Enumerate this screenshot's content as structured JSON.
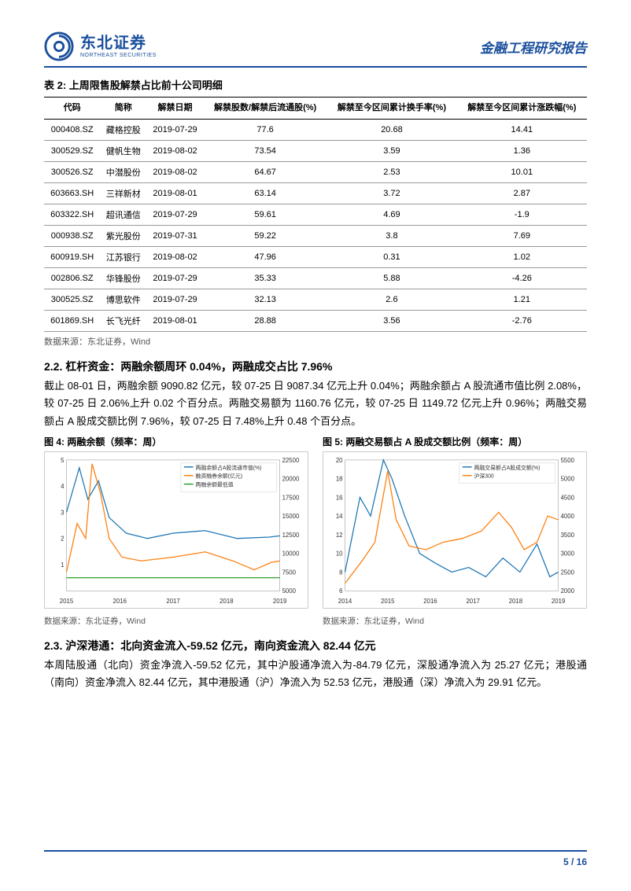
{
  "header": {
    "company_cn": "东北证券",
    "company_en": "NORTHEAST SECURITIES",
    "report_title": "金融工程研究报告",
    "logo_color": "#1a4f9c"
  },
  "table2": {
    "title": "表 2: 上周限售股解禁占比前十公司明细",
    "columns": [
      "代码",
      "简称",
      "解禁日期",
      "解禁股数/解禁后流通股(%)",
      "解禁至今区间累计换手率(%)",
      "解禁至今区间累计涨跌幅(%)"
    ],
    "rows": [
      [
        "000408.SZ",
        "藏格控股",
        "2019-07-29",
        "77.6",
        "20.68",
        "14.41"
      ],
      [
        "300529.SZ",
        "健帆生物",
        "2019-08-02",
        "73.54",
        "3.59",
        "1.36"
      ],
      [
        "300526.SZ",
        "中潜股份",
        "2019-08-02",
        "64.67",
        "2.53",
        "10.01"
      ],
      [
        "603663.SH",
        "三祥新材",
        "2019-08-01",
        "63.14",
        "3.72",
        "2.87"
      ],
      [
        "603322.SH",
        "超讯通信",
        "2019-07-29",
        "59.61",
        "4.69",
        "-1.9"
      ],
      [
        "000938.SZ",
        "紫光股份",
        "2019-07-31",
        "59.22",
        "3.8",
        "7.69"
      ],
      [
        "600919.SH",
        "江苏银行",
        "2019-08-02",
        "47.96",
        "0.31",
        "1.02"
      ],
      [
        "002806.SZ",
        "华锋股份",
        "2019-07-29",
        "35.33",
        "5.88",
        "-4.26"
      ],
      [
        "300525.SZ",
        "博思软件",
        "2019-07-29",
        "32.13",
        "2.6",
        "1.21"
      ],
      [
        "601869.SH",
        "长飞光纤",
        "2019-08-01",
        "28.88",
        "3.56",
        "-2.76"
      ]
    ],
    "source": "数据来源：东北证券，Wind"
  },
  "section22": {
    "heading": "2.2. 杠杆资金：两融余额周环 0.04%，两融成交占比 7.96%",
    "para": "截止 08-01 日，两融余额 9090.82 亿元，较 07-25 日 9087.34 亿元上升 0.04%；两融余额占 A 股流通市值比例 2.08%，较 07-25 日 2.06%上升 0.02 个百分点。两融交易额为 1160.76 亿元，较 07-25 日 1149.72 亿元上升 0.96%；两融交易额占 A 股成交额比例 7.96%，较 07-25 日 7.48%上升 0.48 个百分点。"
  },
  "chart4": {
    "title": "图 4: 两融余额（频率：周）",
    "type": "line",
    "background_color": "#ffffff",
    "legend": [
      "两融余额占A股流通市值(%)",
      "融资融券余额(亿元)",
      "两融余额最低值"
    ],
    "legend_colors": [
      "#1f77b4",
      "#ff7f0e",
      "#2ca02c"
    ],
    "x_ticks": [
      "2015",
      "2016",
      "2017",
      "2018",
      "2019"
    ],
    "y_left": {
      "min": 0,
      "max": 5,
      "ticks": [
        1,
        2,
        3,
        4,
        5
      ]
    },
    "y_right": {
      "min": 5000,
      "max": 22500,
      "ticks": [
        5000,
        7500,
        10000,
        12500,
        15000,
        17500,
        20000,
        22500
      ]
    },
    "series": {
      "pct": {
        "color": "#1f77b4",
        "x": [
          0,
          0.06,
          0.1,
          0.15,
          0.2,
          0.28,
          0.38,
          0.5,
          0.65,
          0.8,
          0.95,
          1.0
        ],
        "y": [
          3.0,
          4.7,
          3.5,
          4.2,
          2.8,
          2.2,
          2.0,
          2.2,
          2.3,
          2.0,
          2.05,
          2.1
        ]
      },
      "bal": {
        "color": "#ff7f0e",
        "x": [
          0,
          0.05,
          0.09,
          0.12,
          0.16,
          0.2,
          0.26,
          0.35,
          0.5,
          0.65,
          0.78,
          0.88,
          0.96,
          1.0
        ],
        "y": [
          7500,
          14000,
          12000,
          22000,
          18000,
          12000,
          9500,
          9000,
          9500,
          10200,
          9000,
          7800,
          8800,
          9000
        ]
      },
      "min": {
        "color": "#2ca02c",
        "x": [
          0,
          1.0
        ],
        "y": [
          0.5,
          0.5
        ]
      }
    },
    "source": "数据来源：东北证券，Wind"
  },
  "chart5": {
    "title": "图 5: 两融交易额占 A 股成交额比例（频率：周）",
    "type": "line",
    "background_color": "#ffffff",
    "legend": [
      "两融交易额占A股成交额(%)",
      "沪深300"
    ],
    "legend_colors": [
      "#1f77b4",
      "#ff7f0e"
    ],
    "x_ticks": [
      "2014",
      "2015",
      "2016",
      "2017",
      "2018",
      "2019"
    ],
    "y_left": {
      "min": 6,
      "max": 20,
      "ticks": [
        6,
        8,
        10,
        12,
        14,
        16,
        18,
        20
      ]
    },
    "y_right": {
      "min": 2000,
      "max": 5500,
      "ticks": [
        2000,
        2500,
        3000,
        3500,
        4000,
        4500,
        5000,
        5500
      ]
    },
    "series": {
      "pct": {
        "color": "#1f77b4",
        "x": [
          0,
          0.07,
          0.12,
          0.18,
          0.22,
          0.28,
          0.35,
          0.42,
          0.5,
          0.58,
          0.66,
          0.74,
          0.82,
          0.9,
          0.96,
          1.0
        ],
        "y": [
          8,
          16,
          14,
          20,
          18,
          14,
          10,
          9,
          8,
          8.5,
          7.5,
          9.5,
          8,
          11,
          7.5,
          8
        ]
      },
      "hs300": {
        "color": "#ff7f0e",
        "x": [
          0,
          0.08,
          0.14,
          0.2,
          0.24,
          0.3,
          0.38,
          0.46,
          0.55,
          0.64,
          0.72,
          0.78,
          0.84,
          0.9,
          0.95,
          1.0
        ],
        "y": [
          2200,
          2800,
          3300,
          5200,
          3900,
          3200,
          3100,
          3300,
          3400,
          3600,
          4100,
          3700,
          3100,
          3300,
          4000,
          3900
        ]
      }
    },
    "source": "数据来源：东北证券，Wind"
  },
  "section23": {
    "heading": "2.3. 沪深港通：北向资金流入-59.52 亿元，南向资金流入 82.44 亿元",
    "para": "本周陆股通（北向）资金净流入-59.52 亿元，其中沪股通净流入为-84.79 亿元，深股通净流入为 25.27 亿元；港股通（南向）资金净流入 82.44 亿元，其中港股通（沪）净流入为 52.53 亿元，港股通（深）净流入为 29.91 亿元。"
  },
  "footer": {
    "page": "5",
    "total": "16"
  }
}
